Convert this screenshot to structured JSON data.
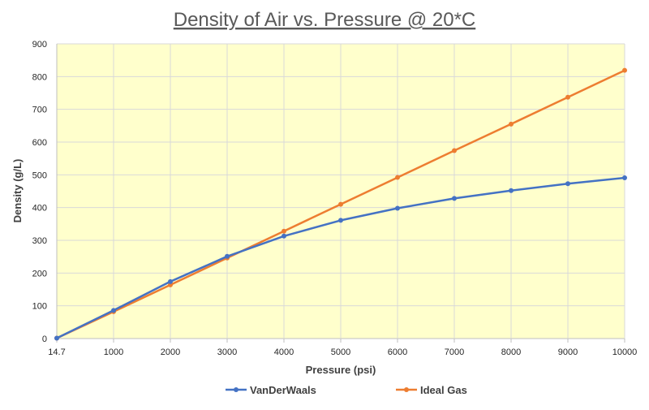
{
  "chart_data": {
    "type": "line",
    "title": "Density of Air vs. Pressure @ 20*C",
    "xlabel": "Pressure (psi)",
    "ylabel": "Density (g/L)",
    "categories": [
      "14.7",
      "1000",
      "2000",
      "3000",
      "4000",
      "5000",
      "6000",
      "7000",
      "8000",
      "9000",
      "10000"
    ],
    "ylim": [
      0,
      900
    ],
    "yticks": [
      0,
      100,
      200,
      300,
      400,
      500,
      600,
      700,
      800,
      900
    ],
    "grid": true,
    "legend_position": "bottom",
    "series": [
      {
        "name": "VanDerWaals",
        "color": "#4472C4",
        "values": [
          1.2,
          86,
          174,
          251,
          313,
          361,
          398,
          428,
          452,
          473,
          491
        ]
      },
      {
        "name": "Ideal Gas",
        "color": "#ED7D31",
        "values": [
          1.2,
          82,
          164,
          246,
          328,
          410,
          492,
          574,
          655,
          737,
          819
        ]
      }
    ],
    "colors": {
      "plot_background": "#FFFFCC",
      "gridline": "#D9D9D9",
      "axis": "#BFBFBF"
    }
  }
}
